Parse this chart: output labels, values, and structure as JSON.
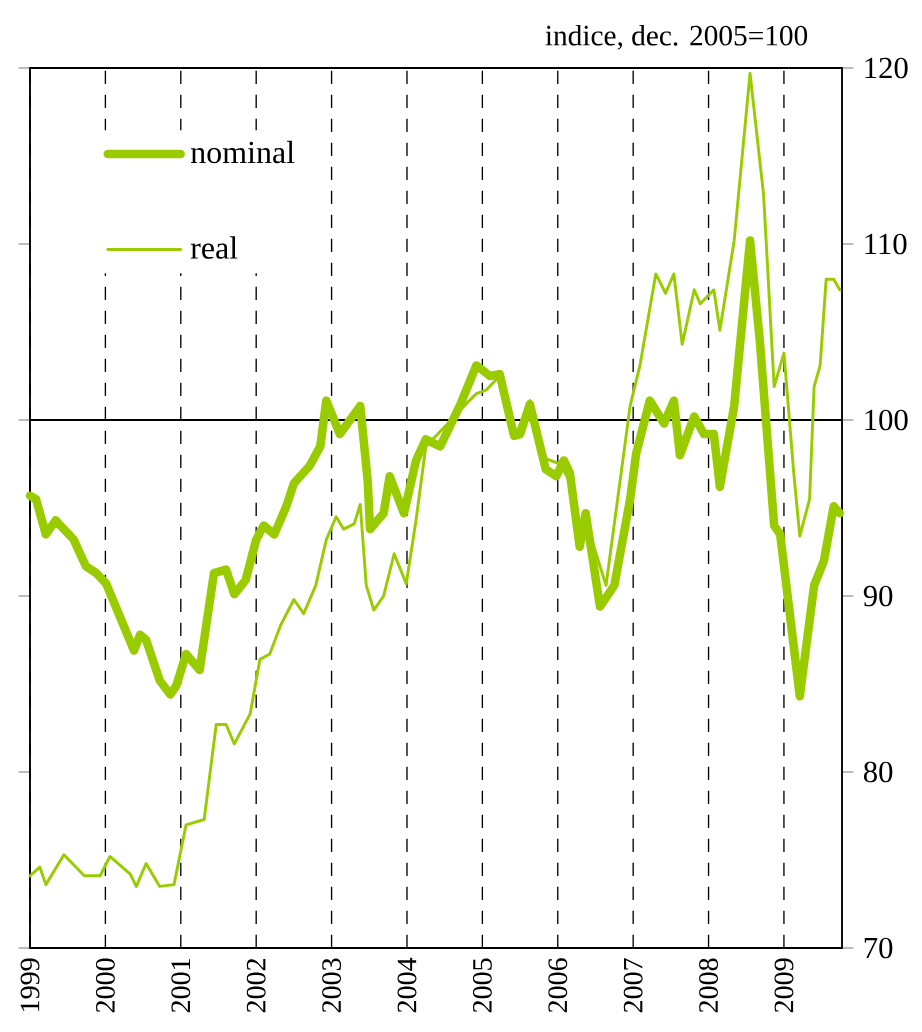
{
  "chart_data": {
    "type": "line",
    "ylabel": "indice, dec. 2005=100",
    "xlim": [
      1999,
      2009.77
    ],
    "xticks": [
      1999,
      2000,
      2001,
      2002,
      2003,
      2004,
      2005,
      2006,
      2007,
      2008,
      2009
    ],
    "ylim": [
      70,
      120
    ],
    "yticks": [
      70,
      80,
      90,
      100,
      110,
      120
    ],
    "grid": "x",
    "legend": "top left",
    "line_style": "solid",
    "marker": "none",
    "ref_lines": [
      {
        "axis": "y",
        "value": 100,
        "color": "#000000"
      }
    ],
    "series": [
      {
        "name": "nominal",
        "color": "#99cc00",
        "x": [
          1999.0,
          1999.08,
          1999.21,
          1999.34,
          1999.58,
          1999.74,
          1999.88,
          2000.01,
          2000.38,
          2000.46,
          2000.54,
          2000.72,
          2000.86,
          2000.94,
          2001.07,
          2001.25,
          2001.44,
          2001.6,
          2001.71,
          2001.86,
          2002.0,
          2002.1,
          2002.24,
          2002.4,
          2002.5,
          2002.71,
          2002.85,
          2002.93,
          2003.11,
          2003.38,
          2003.48,
          2003.51,
          2003.69,
          2003.77,
          2003.96,
          2004.12,
          2004.25,
          2004.44,
          2004.7,
          2004.92,
          2005.1,
          2005.23,
          2005.42,
          2005.5,
          2005.63,
          2005.84,
          2005.98,
          2006.08,
          2006.16,
          2006.29,
          2006.37,
          2006.56,
          2006.75,
          2006.96,
          2007.04,
          2007.22,
          2007.41,
          2007.54,
          2007.62,
          2007.81,
          2007.94,
          2008.07,
          2008.15,
          2008.34,
          2008.55,
          2008.68,
          2008.87,
          2008.95,
          2009.21,
          2009.4,
          2009.53,
          2009.66,
          2009.74
        ],
        "values": [
          95.7,
          95.5,
          93.5,
          94.3,
          93.2,
          91.7,
          91.3,
          90.7,
          86.9,
          87.8,
          87.5,
          85.2,
          84.4,
          84.9,
          86.7,
          85.8,
          91.3,
          91.5,
          90.1,
          90.9,
          93.2,
          94.0,
          93.5,
          95.1,
          96.4,
          97.4,
          98.5,
          101.1,
          99.2,
          100.8,
          96.5,
          93.8,
          94.7,
          96.8,
          94.7,
          97.7,
          98.9,
          98.5,
          100.8,
          103.1,
          102.5,
          102.6,
          99.1,
          99.2,
          100.9,
          97.2,
          96.8,
          97.7,
          97.0,
          92.8,
          94.7,
          89.4,
          90.6,
          95.5,
          98.1,
          101.1,
          99.8,
          101.1,
          98.0,
          100.2,
          99.2,
          99.2,
          96.2,
          100.8,
          110.2,
          104.5,
          94.0,
          93.5,
          84.3,
          90.6,
          92.0,
          95.1,
          94.7
        ]
      },
      {
        "name": "real",
        "color": "#99cc00",
        "x": [
          1999.0,
          1999.13,
          1999.21,
          1999.45,
          1999.72,
          1999.93,
          2000.06,
          2000.33,
          2000.41,
          2000.54,
          2000.72,
          2000.91,
          2001.07,
          2001.31,
          2001.47,
          2001.6,
          2001.71,
          2001.92,
          2002.05,
          2002.18,
          2002.32,
          2002.5,
          2002.63,
          2002.79,
          2002.93,
          2003.06,
          2003.16,
          2003.3,
          2003.38,
          2003.46,
          2003.56,
          2003.69,
          2003.83,
          2003.99,
          2004.12,
          2004.25,
          2004.52,
          2004.78,
          2004.92,
          2005.05,
          2005.23,
          2005.45,
          2005.63,
          2005.84,
          2006.03,
          2006.16,
          2006.29,
          2006.37,
          2006.64,
          2006.96,
          2007.09,
          2007.3,
          2007.43,
          2007.54,
          2007.65,
          2007.81,
          2007.89,
          2008.07,
          2008.15,
          2008.34,
          2008.55,
          2008.73,
          2008.87,
          2009.0,
          2009.13,
          2009.21,
          2009.34,
          2009.4,
          2009.48,
          2009.56,
          2009.66,
          2009.74
        ],
        "values": [
          74.1,
          74.6,
          73.6,
          75.3,
          74.1,
          74.1,
          75.2,
          74.2,
          73.5,
          74.8,
          73.5,
          73.6,
          77.0,
          77.3,
          82.7,
          82.7,
          81.6,
          83.3,
          86.4,
          86.7,
          88.3,
          89.8,
          89.0,
          90.6,
          93.2,
          94.5,
          93.8,
          94.1,
          95.2,
          90.6,
          89.2,
          90.0,
          92.4,
          90.7,
          94.3,
          98.5,
          99.7,
          100.9,
          101.5,
          101.7,
          102.5,
          99.2,
          101.1,
          97.8,
          97.5,
          96.5,
          93.0,
          94.3,
          90.6,
          100.8,
          103.1,
          108.3,
          107.2,
          108.3,
          104.3,
          107.4,
          106.6,
          107.4,
          105.1,
          110.2,
          119.7,
          112.8,
          101.9,
          103.8,
          97.0,
          93.4,
          95.5,
          101.9,
          103.1,
          108.0,
          108.0,
          107.4
        ]
      }
    ]
  }
}
